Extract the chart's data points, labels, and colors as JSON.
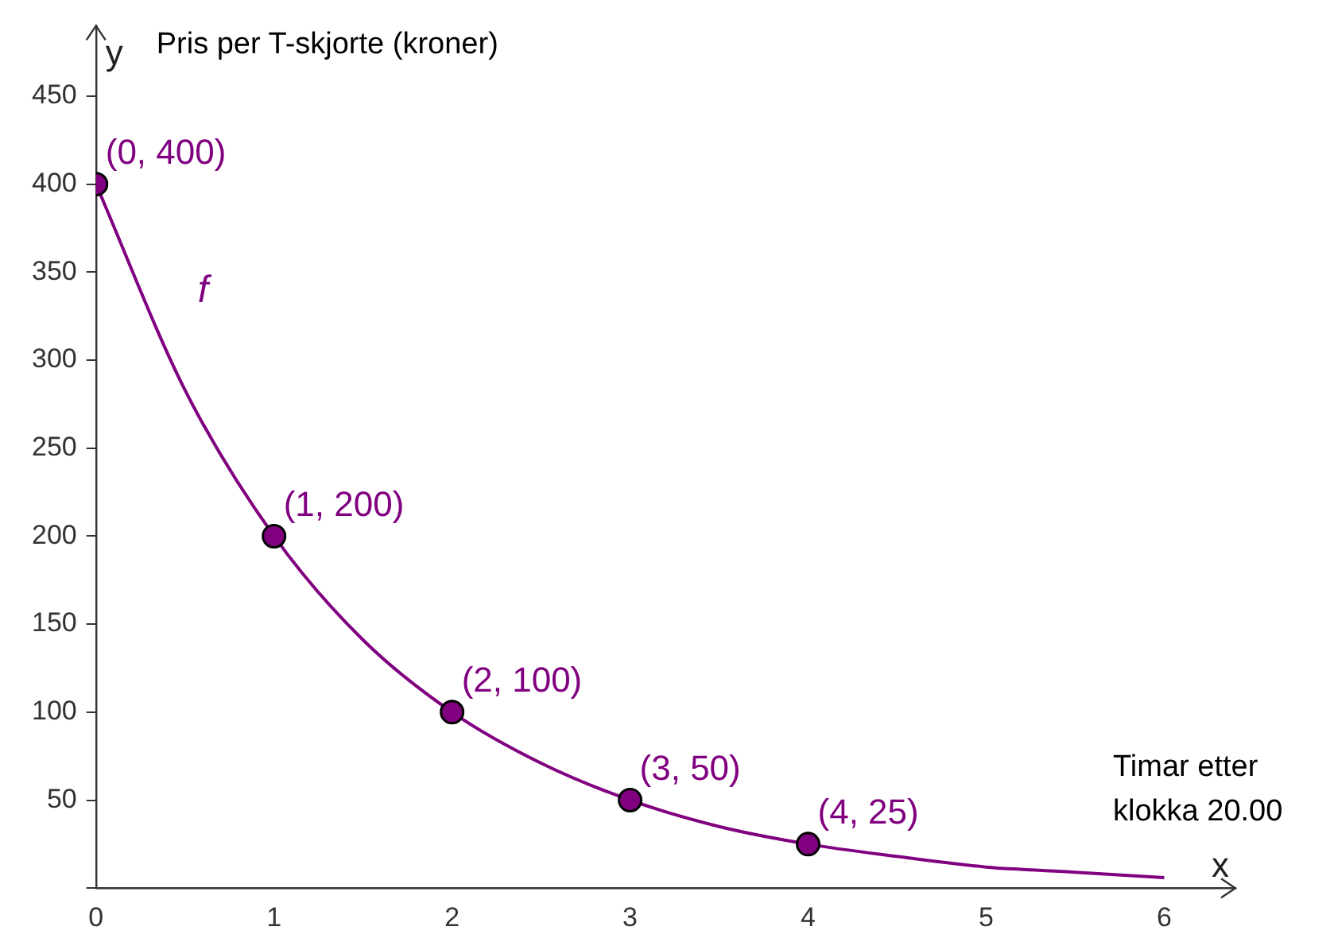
{
  "chart_data": {
    "type": "line",
    "xlabel": "Timar etter klokka 20.00",
    "ylabel": "Pris per T-skjorte (kroner)",
    "annotations": [
      "y",
      "x"
    ],
    "xlim": [
      0,
      6.4
    ],
    "xticks": [
      {
        "value": 0,
        "label": "0"
      },
      1,
      2,
      3,
      4,
      5,
      6
    ],
    "ylim": [
      0,
      490
    ],
    "yticks": [
      {
        "value": 0,
        "label": null
      },
      50,
      100,
      150,
      200,
      250,
      300,
      350,
      400,
      450
    ],
    "grid": false,
    "legend": false,
    "series": [
      {
        "name": "f",
        "color": "#800080",
        "marker": "none",
        "x": [
          0,
          0.5,
          1,
          1.5,
          2,
          2.5,
          3,
          3.5,
          4,
          4.5,
          5,
          5.5,
          6
        ],
        "values": [
          400,
          283,
          200,
          141,
          100,
          71,
          50,
          35,
          25,
          18,
          12,
          9,
          6
        ]
      },
      {
        "type": "scatter",
        "color": "#800080",
        "marker": "circle",
        "x": [
          0,
          1,
          2,
          3,
          4
        ],
        "values": [
          400,
          200,
          100,
          50,
          25
        ],
        "value_labels": [
          "(0, 400)",
          "(1, 200)",
          "(2, 100)",
          "(3, 50)",
          "(4, 25)"
        ]
      }
    ]
  }
}
